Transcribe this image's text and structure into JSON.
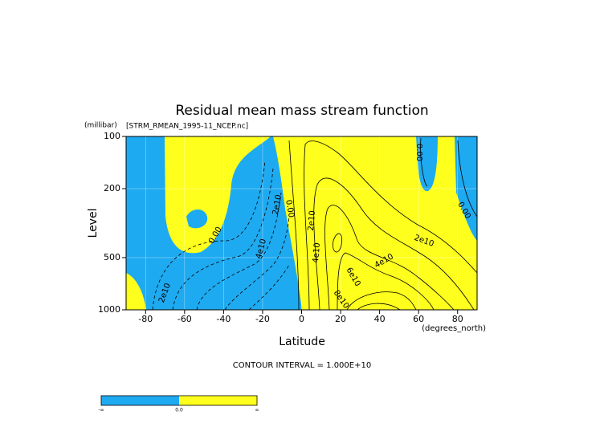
{
  "chart_data": {
    "type": "contour",
    "title": "Residual mean mass stream function",
    "subtitle": "[STRM_RMEAN_1995-11_NCEP.nc]",
    "y_label": "Level",
    "y_units": "(millibar)",
    "x_label": "Latitude",
    "x_units": "(degrees_north)",
    "xlim": [
      -90,
      90
    ],
    "xticks": [
      -80,
      -60,
      -40,
      -20,
      0,
      20,
      40,
      60,
      80
    ],
    "ylim": [
      1000,
      100
    ],
    "yticks": [
      100,
      200,
      500,
      1000
    ],
    "log_y": true,
    "negative_color": "#1eaaf0",
    "positive_color": "#ffff1e",
    "contour_labels": [
      "0.00",
      "2e10",
      "4e10",
      "2e10",
      "0.00",
      "2e10",
      "4e10",
      "6e10",
      "8e10",
      "4e10",
      "2e10",
      "0.00",
      "0.00"
    ],
    "contour_interval": "CONTOUR INTERVAL = 1.000E+10",
    "colorbar_labels": [
      "-∞",
      "0.0",
      "∞"
    ]
  }
}
